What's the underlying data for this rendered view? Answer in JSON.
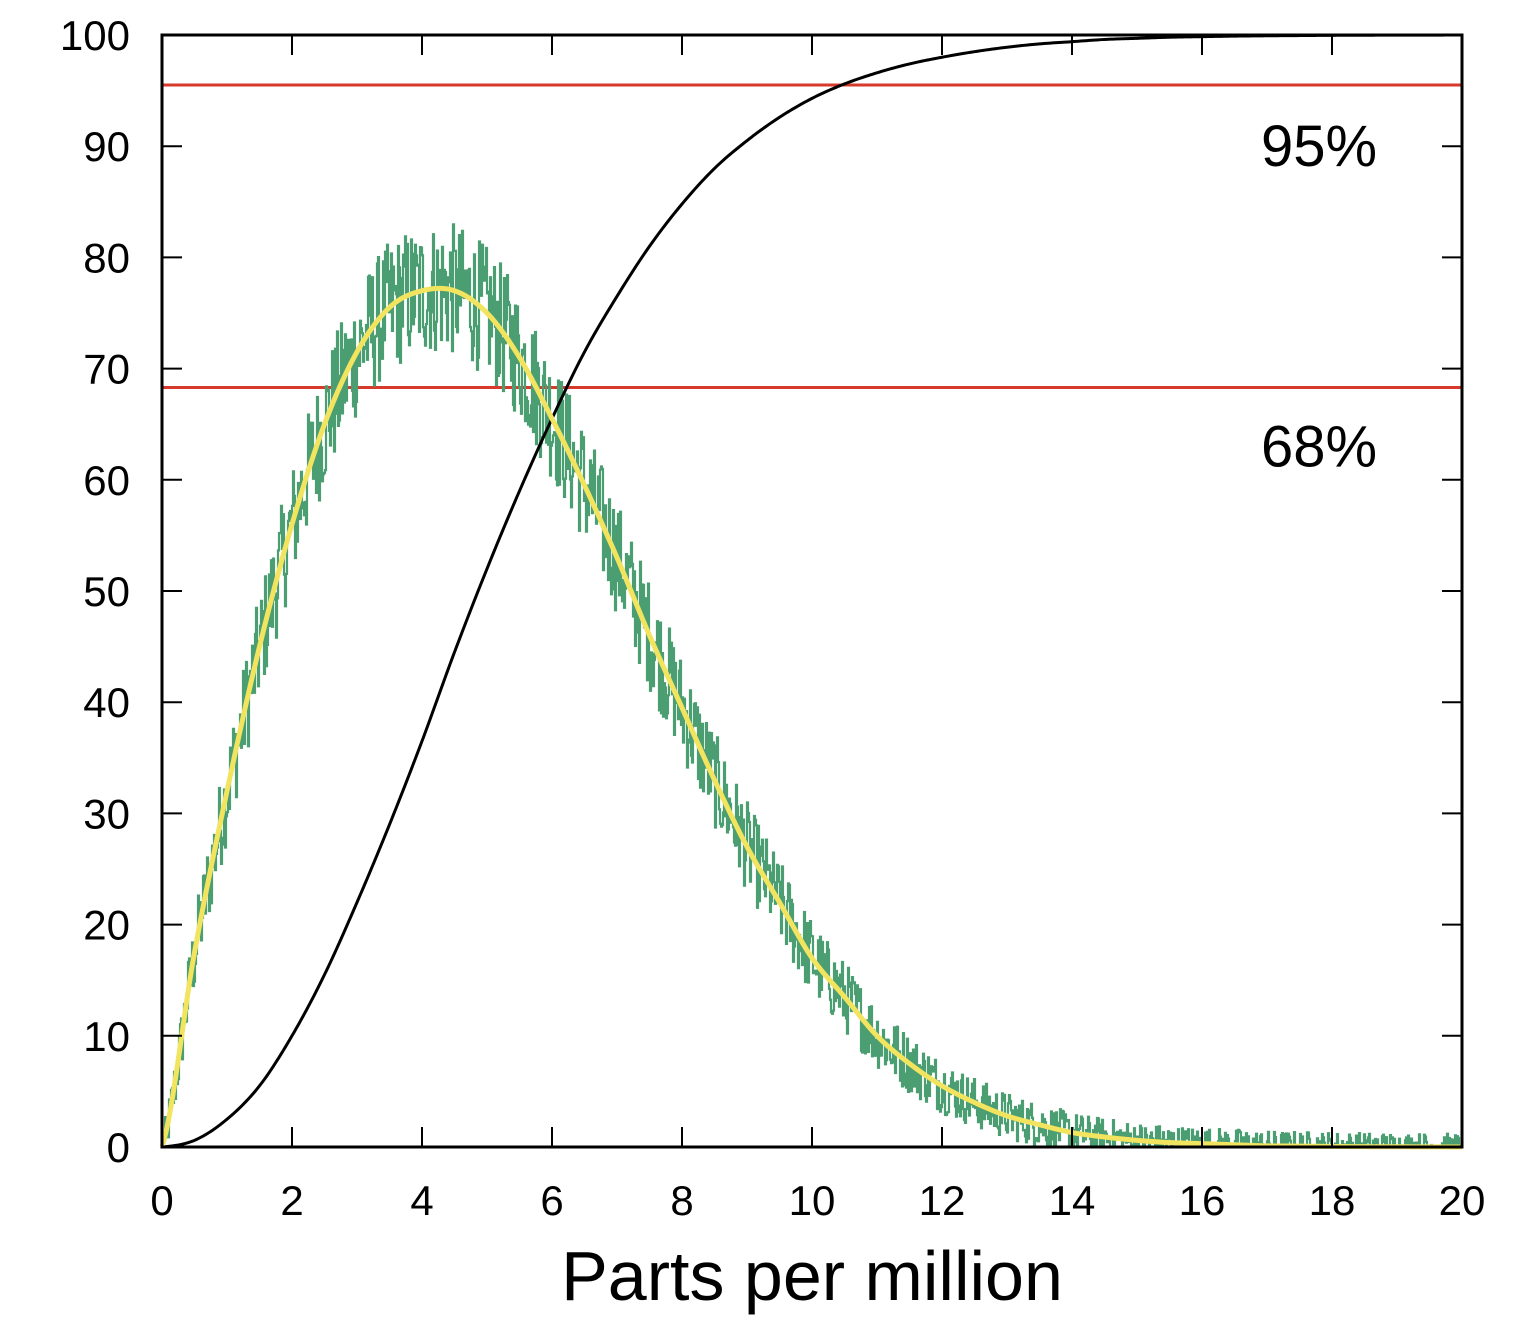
{
  "chart_data": {
    "type": "line",
    "title": "",
    "xlabel": "Parts per million",
    "ylabel": "",
    "xlim": [
      0,
      20
    ],
    "ylim": [
      0,
      100
    ],
    "x_ticks": [
      0,
      2,
      4,
      6,
      8,
      10,
      12,
      14,
      16,
      18,
      20
    ],
    "y_ticks": [
      0,
      10,
      20,
      30,
      40,
      50,
      60,
      70,
      80,
      90,
      100
    ],
    "grid": false,
    "legend": "none",
    "series": [
      {
        "kind": "histogram",
        "color": "#4a9e72",
        "x": [
          0,
          0.5,
          1,
          1.5,
          2,
          2.5,
          3,
          3.5,
          4,
          4.5,
          5,
          5.5,
          6,
          6.5,
          7,
          7.5,
          8,
          8.5,
          9,
          9.5,
          10,
          10.5,
          11,
          11.5,
          12,
          12.5,
          13,
          13.5,
          14,
          14.5,
          15,
          15.5,
          16,
          16.5,
          17,
          17.5,
          18,
          18.5,
          19,
          19.5,
          20
        ],
        "y": [
          0,
          17.5,
          32,
          45,
          56,
          65,
          71.5,
          75.5,
          77,
          77,
          75,
          71,
          65.5,
          59.5,
          53,
          46,
          39.5,
          33,
          27,
          22,
          17,
          13.5,
          10,
          7.5,
          5.5,
          4,
          2.8,
          2,
          1.3,
          0.9,
          0.6,
          0.4,
          0.3,
          0.2,
          0.1,
          0.08,
          0.05,
          0.03,
          0.02,
          0.01,
          0
        ]
      },
      {
        "kind": "density-fit",
        "color": "#f2e45f",
        "x": [
          0,
          0.5,
          1,
          1.5,
          2,
          2.5,
          3,
          3.5,
          4,
          4.5,
          5,
          5.5,
          6,
          6.5,
          7,
          7.5,
          8,
          8.5,
          9,
          9.5,
          10,
          10.5,
          11,
          11.5,
          12,
          12.5,
          13,
          13.5,
          14,
          14.5,
          15,
          15.5,
          16,
          16.5,
          17,
          17.5,
          18,
          18.5,
          19,
          19.5,
          20
        ],
        "y": [
          0,
          17.5,
          32,
          45,
          56,
          65,
          71.5,
          75.5,
          77,
          77,
          75,
          71,
          65.5,
          59.5,
          53,
          46,
          39.5,
          33,
          27,
          22,
          17,
          13.5,
          10,
          7.5,
          5.5,
          4,
          2.8,
          2,
          1.3,
          0.9,
          0.6,
          0.4,
          0.3,
          0.2,
          0.1,
          0.08,
          0.05,
          0.03,
          0.02,
          0.01,
          0
        ]
      },
      {
        "kind": "cumulative",
        "color": "#000000",
        "x": [
          0,
          0.5,
          1,
          1.5,
          2,
          2.5,
          3,
          3.5,
          4,
          4.5,
          5,
          5.5,
          6,
          6.5,
          7,
          7.5,
          8,
          8.5,
          9,
          9.5,
          10,
          10.5,
          11,
          11.5,
          12,
          12.5,
          13,
          13.5,
          14,
          14.5,
          15,
          15.5,
          16,
          16.5,
          17,
          17.5,
          18,
          18.5,
          19,
          19.5,
          20
        ],
        "y": [
          0,
          0.6,
          2.5,
          5.5,
          10,
          15.5,
          22,
          29,
          36.5,
          44.5,
          52,
          59,
          65.5,
          71.5,
          76.5,
          81,
          84.8,
          88,
          90.5,
          92.6,
          94.3,
          95.6,
          96.6,
          97.4,
          98,
          98.5,
          98.9,
          99.2,
          99.4,
          99.6,
          99.7,
          99.8,
          99.85,
          99.9,
          99.93,
          99.95,
          99.97,
          99.98,
          99.99,
          99.99,
          100
        ]
      }
    ],
    "reference_lines": [
      {
        "y": 95.5,
        "color": "#d63a2a"
      },
      {
        "y": 68.3,
        "color": "#d63a2a"
      }
    ],
    "annotations": [
      {
        "text": "95%",
        "x": 17.8,
        "y": 90
      },
      {
        "text": "68%",
        "x": 17.8,
        "y": 63
      }
    ]
  }
}
